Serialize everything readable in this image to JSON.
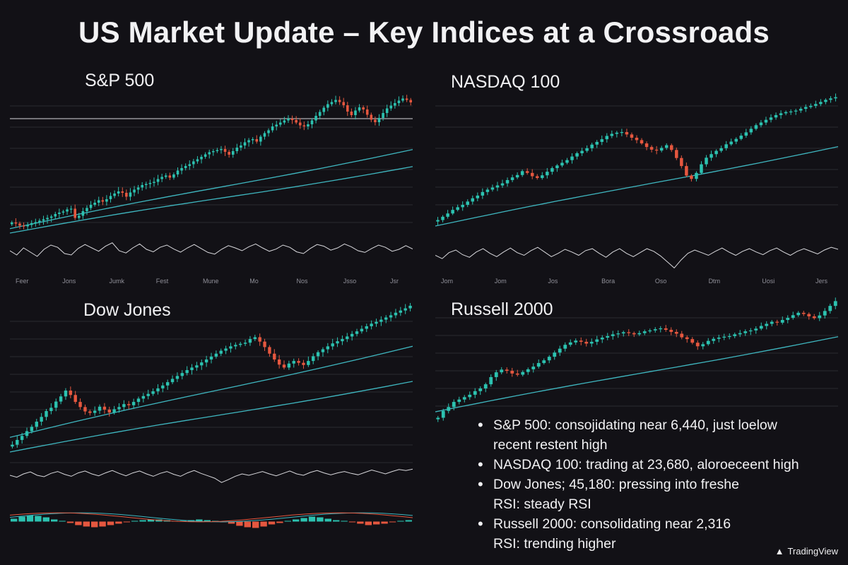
{
  "title": "US Market Update – Key Indices at a Crossroads",
  "chart_data": [
    {
      "type": "candlestick",
      "title": "S&P 500",
      "x_labels": [
        "Feer",
        "Jons",
        "Jumk",
        "Fest",
        "Mune",
        "Mo",
        "Nos",
        "Jsso",
        "Jsr"
      ],
      "close": [
        6,
        5.4,
        4.2,
        3.8,
        4.6,
        5.6,
        6.2,
        7,
        7.8,
        8.6,
        9.4,
        10.8,
        11.6,
        12.2,
        13.4,
        13.8,
        8.6,
        9.8,
        12.4,
        14.2,
        16,
        17.2,
        18.6,
        17.8,
        19.2,
        21,
        22.4,
        23.6,
        22.8,
        20.6,
        23,
        24.6,
        25.8,
        27.2,
        27.8,
        28.4,
        29,
        30.6,
        31.8,
        32.6,
        31.4,
        33.2,
        35.4,
        36.8,
        38,
        39,
        40.6,
        41.8,
        43.2,
        44.6,
        45.8,
        46.4,
        47,
        47.6,
        46,
        44.4,
        46.4,
        48.4,
        49.6,
        51.4,
        52.6,
        53.2,
        51.8,
        54.6,
        56.6,
        58.2,
        60.4,
        61.4,
        62.6,
        63.8,
        64.8,
        64,
        62.6,
        61,
        60.4,
        61.6,
        63.8,
        66.4,
        68.6,
        71,
        73,
        74.2,
        75.4,
        74.2,
        72.4,
        68.8,
        66.8,
        69.4,
        71.2,
        70,
        67,
        64.2,
        62.8,
        65.2,
        68,
        70.6,
        72.2,
        73.6,
        75,
        76.2,
        75.4,
        74
      ],
      "ma_short": [
        2.5,
        47.5
      ],
      "ma_long": [
        0,
        37.8
      ],
      "resistance": 64.8,
      "indicator": [
        0.5,
        0.35,
        0.6,
        0.45,
        0.3,
        0.55,
        0.7,
        0.62,
        0.4,
        0.35,
        0.58,
        0.72,
        0.6,
        0.48,
        0.66,
        0.78,
        0.5,
        0.42,
        0.6,
        0.74,
        0.55,
        0.46,
        0.62,
        0.7,
        0.56,
        0.45,
        0.6,
        0.72,
        0.58,
        0.44,
        0.38,
        0.55,
        0.68,
        0.6,
        0.5,
        0.64,
        0.74,
        0.6,
        0.48,
        0.56,
        0.7,
        0.62,
        0.46,
        0.4,
        0.58,
        0.72,
        0.66,
        0.52,
        0.6,
        0.74,
        0.64,
        0.5,
        0.44,
        0.58,
        0.7,
        0.62,
        0.48,
        0.55,
        0.68,
        0.56
      ],
      "ylim": [
        0,
        80
      ]
    },
    {
      "type": "candlestick",
      "title": "NASDAQ 100",
      "x_labels": [
        "Jom",
        "Jom",
        "Jos",
        "Bora",
        "Oso",
        "Dtm",
        "Uosi",
        "Jers"
      ],
      "close": [
        4,
        6.2,
        8.4,
        10.8,
        12.6,
        14.2,
        16.4,
        18.6,
        20.4,
        22.8,
        24.4,
        25.8,
        27.2,
        28.6,
        30.8,
        32.6,
        34.2,
        36.8,
        35.6,
        33.4,
        32.2,
        34,
        36.4,
        38.8,
        40.6,
        42.4,
        44.2,
        46.6,
        48.8,
        50.4,
        52.2,
        54.6,
        56.4,
        58.2,
        60.4,
        61.8,
        62.6,
        63,
        61.4,
        59.2,
        57.6,
        55.4,
        53,
        51.2,
        50.6,
        52.4,
        54.2,
        51,
        45.6,
        40.2,
        33.8,
        31.6,
        35.6,
        41.4,
        45.8,
        48.2,
        50.4,
        52.2,
        54.8,
        56.6,
        58.4,
        60.6,
        62.8,
        65.2,
        67.6,
        69.4,
        71.2,
        72.8,
        74.4,
        75.6,
        76.4,
        76.8,
        77.4,
        78.6,
        79.8,
        80.6,
        81.8,
        83.2,
        84.6,
        85.6,
        86.4
      ],
      "ma_short": [
        0,
        53.4
      ],
      "indicator": [
        0.5,
        0.4,
        0.58,
        0.66,
        0.52,
        0.44,
        0.6,
        0.7,
        0.56,
        0.46,
        0.6,
        0.72,
        0.58,
        0.5,
        0.64,
        0.74,
        0.6,
        0.46,
        0.56,
        0.68,
        0.6,
        0.5,
        0.64,
        0.7,
        0.56,
        0.44,
        0.6,
        0.7,
        0.56,
        0.46,
        0.58,
        0.7,
        0.62,
        0.48,
        0.3,
        0.12,
        0.36,
        0.56,
        0.66,
        0.58,
        0.5,
        0.62,
        0.72,
        0.6,
        0.5,
        0.62,
        0.7,
        0.6,
        0.52,
        0.64,
        0.72,
        0.6,
        0.5,
        0.62,
        0.7,
        0.62,
        0.54,
        0.66,
        0.74,
        0.68
      ],
      "ylim": [
        0,
        90
      ]
    },
    {
      "type": "candlestick",
      "title": "Dow Jones",
      "x_labels": [],
      "close": [
        4,
        6.6,
        8.8,
        11.4,
        13.8,
        16.6,
        19.2,
        22.4,
        24.2,
        27.6,
        30.4,
        33.6,
        31.2,
        27.4,
        24.6,
        22.2,
        21.4,
        22.6,
        24.8,
        23.2,
        21.6,
        23.4,
        24.6,
        26.2,
        25.6,
        27.4,
        29.2,
        30.6,
        31.8,
        33.2,
        34.8,
        36.4,
        38.2,
        40,
        41.6,
        43.2,
        44.8,
        46.2,
        47.4,
        49,
        50.6,
        52.2,
        53.8,
        55.4,
        56.6,
        57.8,
        58.6,
        59.2,
        59.8,
        61.8,
        62.8,
        60.4,
        57.4,
        53.8,
        50.6,
        47.8,
        46.2,
        48.4,
        49.8,
        48.8,
        47.6,
        49.8,
        52.4,
        54.6,
        56.2,
        57.8,
        59.4,
        60.6,
        61.8,
        63.2,
        64.6,
        66,
        67.4,
        68.8,
        70.2,
        71.2,
        72.4,
        73.6,
        74.8,
        76.2,
        77.4,
        78.6,
        80
      ],
      "ma_short": [
        8,
        58
      ],
      "ma_long": [
        0,
        38.8
      ],
      "indicator": [
        0.5,
        0.42,
        0.56,
        0.64,
        0.5,
        0.44,
        0.58,
        0.66,
        0.54,
        0.46,
        0.6,
        0.68,
        0.56,
        0.48,
        0.6,
        0.7,
        0.58,
        0.48,
        0.6,
        0.68,
        0.56,
        0.46,
        0.58,
        0.66,
        0.54,
        0.46,
        0.6,
        0.7,
        0.58,
        0.48,
        0.38,
        0.2,
        0.32,
        0.46,
        0.56,
        0.5,
        0.58,
        0.66,
        0.56,
        0.48,
        0.58,
        0.68,
        0.56,
        0.5,
        0.62,
        0.7,
        0.6,
        0.52,
        0.6,
        0.66,
        0.58,
        0.52,
        0.62,
        0.72,
        0.64,
        0.56,
        0.66,
        0.74,
        0.7,
        0.76
      ],
      "ylim": [
        0,
        85
      ]
    },
    {
      "type": "candlestick",
      "title": "Russell 2000",
      "x_labels": [],
      "close": [
        4,
        8.6,
        11.2,
        14.6,
        16.2,
        17.8,
        19.4,
        21.8,
        23.6,
        26.4,
        31.2,
        34.4,
        36.2,
        35.4,
        33.6,
        32.8,
        34.6,
        36.4,
        38.2,
        40.6,
        42.4,
        44.8,
        47.6,
        50.2,
        52.8,
        54.4,
        55.6,
        54.8,
        53.6,
        54.8,
        56.4,
        57.6,
        58.6,
        59.8,
        60.4,
        61.2,
        60.6,
        59.8,
        60.6,
        61.8,
        62.4,
        63.2,
        63.8,
        62.8,
        61.4,
        60.2,
        57.8,
        56.6,
        54.2,
        51.8,
        53.2,
        55.4,
        56.8,
        57.6,
        58.2,
        58.6,
        59.8,
        60.6,
        61.8,
        62.4,
        63.6,
        65.4,
        66.8,
        68.2,
        67.6,
        69.4,
        70.8,
        72.6,
        74.2,
        73.4,
        71.8,
        70.6,
        72.4,
        75.4,
        78.8,
        82
      ],
      "ma_short": [
        8,
        58.4
      ],
      "ylim": [
        0,
        85
      ]
    }
  ],
  "macd": {
    "histogram": [
      0.4,
      0.7,
      0.9,
      0.8,
      0.6,
      0.3,
      0.1,
      -0.2,
      -0.5,
      -0.7,
      -0.8,
      -0.7,
      -0.5,
      -0.3,
      -0.1,
      0.1,
      0.2,
      0.3,
      0.3,
      0.2,
      0.1,
      0.1,
      0.2,
      0.3,
      0.2,
      0.1,
      -0.1,
      -0.3,
      -0.6,
      -0.8,
      -0.9,
      -0.7,
      -0.4,
      -0.2,
      0.1,
      0.3,
      0.5,
      0.7,
      0.6,
      0.4,
      0.2,
      0.1,
      -0.1,
      -0.3,
      -0.5,
      -0.4,
      -0.3,
      -0.1,
      0.1,
      0.2
    ]
  },
  "notes": [
    {
      "line1": "S&P 500: consojidating near 6,440, just loelow",
      "line2": "recent restent high"
    },
    {
      "line1": "NASDAQ 100: trading at 23,680, aloroeceent high",
      "line2": ""
    },
    {
      "line1": "Dow Jones; 45,180: pressing into freshe",
      "line2": "RSI: steady RSI"
    },
    {
      "line1": "Russell 2000: consolidating near 2,316",
      "line2": "RSI: trending higher"
    }
  ],
  "brand": {
    "name": "TradingView",
    "icon": "tradingview-logo-icon"
  },
  "colors": {
    "up": "#2cc2b0",
    "down": "#e5573f",
    "ma": "#3fb7c0",
    "grid": "#2a2a30",
    "indicator": "#d9d9dd",
    "background": "#121116"
  }
}
